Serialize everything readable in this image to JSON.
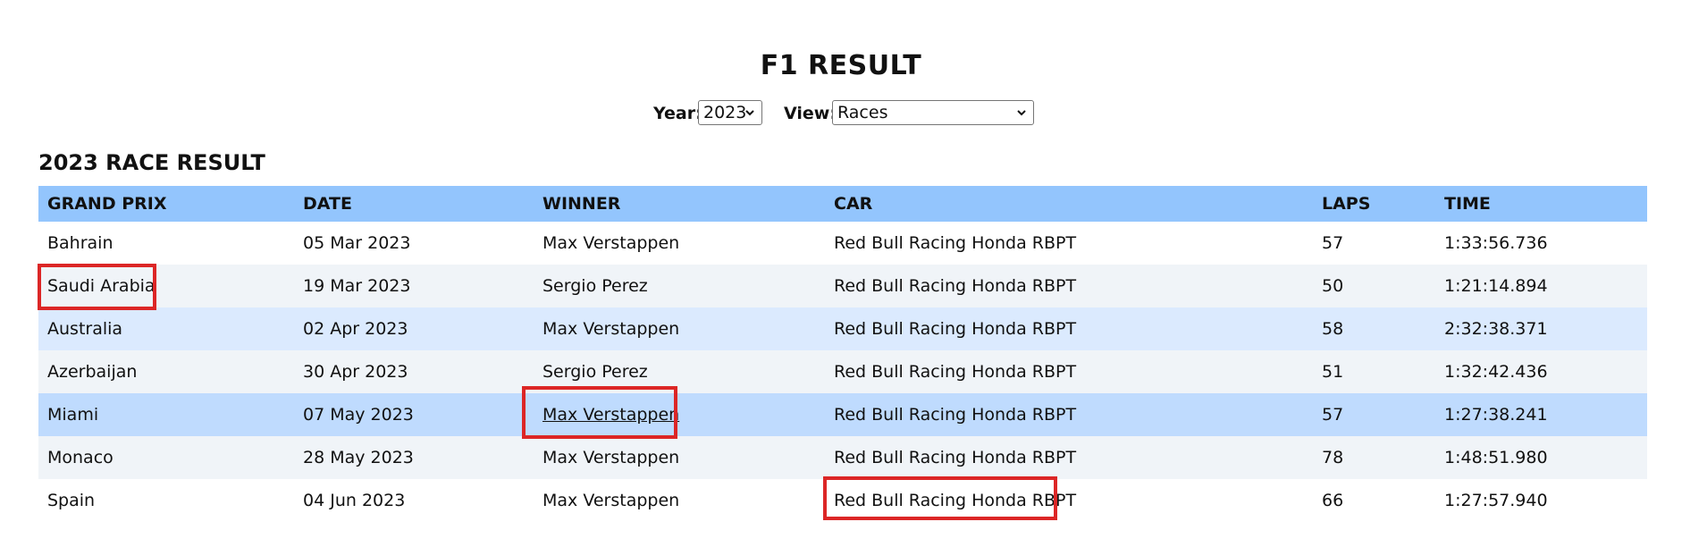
{
  "page": {
    "title": "F1 RESULT",
    "section_title": "2023 RACE RESULT"
  },
  "controls": {
    "year_label": "Year:",
    "year_value": "2023",
    "view_label": "View:",
    "view_value": "Races"
  },
  "table": {
    "headers": [
      "GRAND PRIX",
      "DATE",
      "WINNER",
      "CAR",
      "LAPS",
      "TIME"
    ],
    "rows": [
      {
        "grand_prix": "Bahrain",
        "date": "05 Mar 2023",
        "winner": "Max Verstappen",
        "car": "Red Bull Racing Honda RBPT",
        "laps": "57",
        "time": "1:33:56.736"
      },
      {
        "grand_prix": "Saudi Arabia",
        "date": "19 Mar 2023",
        "winner": "Sergio Perez",
        "car": "Red Bull Racing Honda RBPT",
        "laps": "50",
        "time": "1:21:14.894"
      },
      {
        "grand_prix": "Australia",
        "date": "02 Apr 2023",
        "winner": "Max Verstappen",
        "car": "Red Bull Racing Honda RBPT",
        "laps": "58",
        "time": "2:32:38.371"
      },
      {
        "grand_prix": "Azerbaijan",
        "date": "30 Apr 2023",
        "winner": "Sergio Perez",
        "car": "Red Bull Racing Honda RBPT",
        "laps": "51",
        "time": "1:32:42.436"
      },
      {
        "grand_prix": "Miami",
        "date": "07 May 2023",
        "winner": "Max Verstappen",
        "car": "Red Bull Racing Honda RBPT",
        "laps": "57",
        "time": "1:27:38.241"
      },
      {
        "grand_prix": "Monaco",
        "date": "28 May 2023",
        "winner": "Max Verstappen",
        "car": "Red Bull Racing Honda RBPT",
        "laps": "78",
        "time": "1:48:51.980"
      },
      {
        "grand_prix": "Spain",
        "date": "04 Jun 2023",
        "winner": "Max Verstappen",
        "car": "Red Bull Racing Honda RBPT",
        "laps": "66",
        "time": "1:27:57.940"
      }
    ]
  },
  "colors": {
    "header_bg": "#93c5fd",
    "row_alt_grey": "#f0f4f8",
    "row_alt_blue": "#dbeafe",
    "row_selected": "#bfdbfe",
    "highlight_border": "#dc2626"
  }
}
